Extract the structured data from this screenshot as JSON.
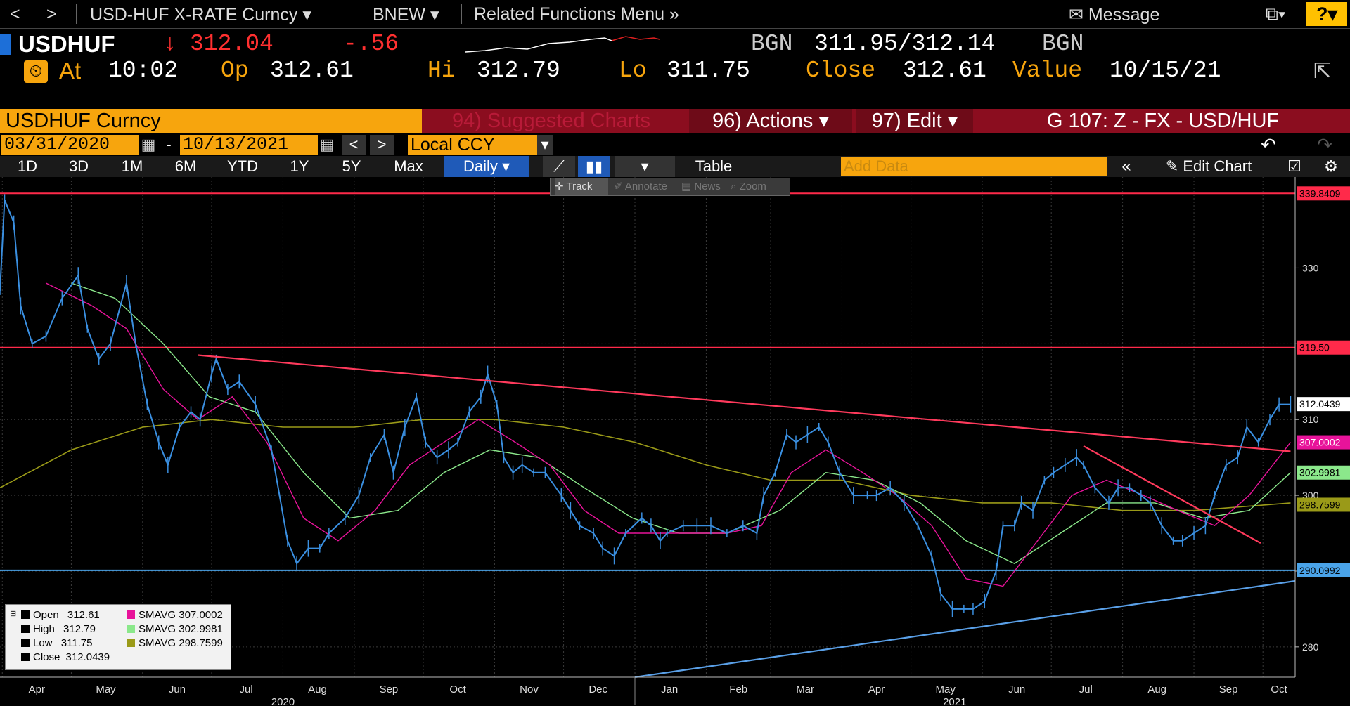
{
  "topbar": {
    "back": "<",
    "forward": ">",
    "security_menu": "USD-HUF X-RATE Curncy",
    "source_menu": "BNEW",
    "related_menu": "Related Functions Menu",
    "message": "Message",
    "help": "?"
  },
  "quote": {
    "ticker": "USDHUF",
    "last": "312.04",
    "change": "-.56",
    "bid_src": "BGN",
    "bid_ask": "311.95/312.14",
    "ask_src": "BGN",
    "at_label": "At",
    "at_time": "10:02",
    "op_label": "Op",
    "op": "312.61",
    "hi_label": "Hi",
    "hi": "312.79",
    "lo_label": "Lo",
    "lo": "311.75",
    "close_label": "Close",
    "close": "312.61",
    "value_label": "Value",
    "value_date": "10/15/21"
  },
  "toolbar": {
    "security": "USDHUF Curncy",
    "suggested": "94) Suggested Charts",
    "actions": "96) Actions",
    "edit": "97) Edit",
    "chart_id": "G 107: Z - FX - USD/HUF",
    "start_date": "03/31/2020",
    "end_date": "10/13/2021",
    "currency": "Local CCY",
    "ranges": [
      "1D",
      "3D",
      "1M",
      "6M",
      "YTD",
      "1Y",
      "5Y",
      "Max"
    ],
    "period": "Daily",
    "table": "Table",
    "add_data": "Add Data",
    "edit_chart": "Edit Chart",
    "tools": [
      "Track",
      "Annotate",
      "News",
      "Zoom"
    ]
  },
  "chart_data": {
    "type": "line",
    "ylim": [
      276,
      342
    ],
    "yticks": [
      280,
      290,
      300,
      310,
      320,
      330
    ],
    "ytick_labels": [
      "280",
      "290",
      "300",
      "310",
      "320",
      "330"
    ],
    "months": [
      "Apr",
      "May",
      "Jun",
      "Jul",
      "Aug",
      "Sep",
      "Oct",
      "Nov",
      "Dec",
      "Jan",
      "Feb",
      "Mar",
      "Apr",
      "May",
      "Jun",
      "Jul",
      "Aug",
      "Sep",
      "Oct"
    ],
    "years": [
      "2020",
      "2021"
    ],
    "close_series": [
      [
        "2020-03-31",
        327
      ],
      [
        "2020-04-02",
        339
      ],
      [
        "2020-04-06",
        336
      ],
      [
        "2020-04-09",
        325
      ],
      [
        "2020-04-14",
        320
      ],
      [
        "2020-04-20",
        321
      ],
      [
        "2020-04-27",
        326
      ],
      [
        "2020-05-04",
        329
      ],
      [
        "2020-05-08",
        322
      ],
      [
        "2020-05-13",
        318
      ],
      [
        "2020-05-18",
        320
      ],
      [
        "2020-05-25",
        328
      ],
      [
        "2020-05-29",
        320
      ],
      [
        "2020-06-03",
        312
      ],
      [
        "2020-06-08",
        307
      ],
      [
        "2020-06-12",
        304
      ],
      [
        "2020-06-17",
        309
      ],
      [
        "2020-06-22",
        311
      ],
      [
        "2020-06-26",
        310
      ],
      [
        "2020-07-01",
        316
      ],
      [
        "2020-07-03",
        318
      ],
      [
        "2020-07-08",
        314
      ],
      [
        "2020-07-13",
        315
      ],
      [
        "2020-07-20",
        312
      ],
      [
        "2020-07-27",
        306
      ],
      [
        "2020-08-03",
        294
      ],
      [
        "2020-08-07",
        291
      ],
      [
        "2020-08-12",
        293
      ],
      [
        "2020-08-17",
        293
      ],
      [
        "2020-08-21",
        295
      ],
      [
        "2020-08-28",
        297
      ],
      [
        "2020-09-03",
        300
      ],
      [
        "2020-09-08",
        305
      ],
      [
        "2020-09-14",
        308
      ],
      [
        "2020-09-18",
        303
      ],
      [
        "2020-09-23",
        309
      ],
      [
        "2020-09-28",
        313
      ],
      [
        "2020-10-02",
        307
      ],
      [
        "2020-10-07",
        305
      ],
      [
        "2020-10-12",
        306
      ],
      [
        "2020-10-16",
        307
      ],
      [
        "2020-10-21",
        311
      ],
      [
        "2020-10-26",
        313
      ],
      [
        "2020-10-29",
        316
      ],
      [
        "2020-11-02",
        312
      ],
      [
        "2020-11-05",
        305
      ],
      [
        "2020-11-09",
        303
      ],
      [
        "2020-11-13",
        304
      ],
      [
        "2020-11-18",
        303
      ],
      [
        "2020-11-23",
        303
      ],
      [
        "2020-11-30",
        300
      ],
      [
        "2020-12-04",
        298
      ],
      [
        "2020-12-08",
        296
      ],
      [
        "2020-12-14",
        295
      ],
      [
        "2020-12-18",
        293
      ],
      [
        "2020-12-23",
        292
      ],
      [
        "2020-12-28",
        295
      ],
      [
        "2021-01-04",
        297
      ],
      [
        "2021-01-08",
        296
      ],
      [
        "2021-01-12",
        294
      ],
      [
        "2021-01-15",
        295
      ],
      [
        "2021-01-22",
        296
      ],
      [
        "2021-01-28",
        296
      ],
      [
        "2021-02-03",
        296
      ],
      [
        "2021-02-10",
        295
      ],
      [
        "2021-02-17",
        296
      ],
      [
        "2021-02-23",
        295
      ],
      [
        "2021-02-26",
        300
      ],
      [
        "2021-03-03",
        303
      ],
      [
        "2021-03-08",
        308
      ],
      [
        "2021-03-12",
        307
      ],
      [
        "2021-03-17",
        308
      ],
      [
        "2021-03-22",
        309
      ],
      [
        "2021-03-26",
        307
      ],
      [
        "2021-03-31",
        303
      ],
      [
        "2021-04-06",
        300
      ],
      [
        "2021-04-12",
        300
      ],
      [
        "2021-04-16",
        300
      ],
      [
        "2021-04-22",
        301
      ],
      [
        "2021-04-28",
        299
      ],
      [
        "2021-05-04",
        296
      ],
      [
        "2021-05-10",
        292
      ],
      [
        "2021-05-14",
        287
      ],
      [
        "2021-05-19",
        285
      ],
      [
        "2021-05-24",
        285
      ],
      [
        "2021-05-28",
        285
      ],
      [
        "2021-06-02",
        286
      ],
      [
        "2021-06-07",
        290
      ],
      [
        "2021-06-10",
        296
      ],
      [
        "2021-06-15",
        296
      ],
      [
        "2021-06-18",
        299
      ],
      [
        "2021-06-23",
        298
      ],
      [
        "2021-06-28",
        302
      ],
      [
        "2021-07-02",
        303
      ],
      [
        "2021-07-07",
        304
      ],
      [
        "2021-07-12",
        305
      ],
      [
        "2021-07-15",
        304
      ],
      [
        "2021-07-20",
        301
      ],
      [
        "2021-07-26",
        299
      ],
      [
        "2021-07-30",
        301
      ],
      [
        "2021-08-04",
        301
      ],
      [
        "2021-08-09",
        300
      ],
      [
        "2021-08-13",
        299
      ],
      [
        "2021-08-18",
        296
      ],
      [
        "2021-08-23",
        294
      ],
      [
        "2021-08-27",
        294
      ],
      [
        "2021-09-01",
        295
      ],
      [
        "2021-09-06",
        296
      ],
      [
        "2021-09-10",
        300
      ],
      [
        "2021-09-15",
        304
      ],
      [
        "2021-09-20",
        305
      ],
      [
        "2021-09-24",
        309
      ],
      [
        "2021-09-29",
        307
      ],
      [
        "2021-10-04",
        310
      ],
      [
        "2021-10-08",
        312
      ],
      [
        "2021-10-13",
        312
      ]
    ],
    "sma_short": [
      [
        "2020-04-20",
        328
      ],
      [
        "2020-05-10",
        325
      ],
      [
        "2020-05-25",
        322
      ],
      [
        "2020-06-10",
        314
      ],
      [
        "2020-06-25",
        310
      ],
      [
        "2020-07-10",
        313
      ],
      [
        "2020-07-25",
        307
      ],
      [
        "2020-08-10",
        297
      ],
      [
        "2020-08-25",
        294
      ],
      [
        "2020-09-10",
        298
      ],
      [
        "2020-09-25",
        304
      ],
      [
        "2020-10-10",
        307
      ],
      [
        "2020-10-25",
        310
      ],
      [
        "2020-11-10",
        307
      ],
      [
        "2020-11-25",
        304
      ],
      [
        "2020-12-10",
        298
      ],
      [
        "2020-12-25",
        295
      ],
      [
        "2021-01-10",
        295
      ],
      [
        "2021-01-25",
        295
      ],
      [
        "2021-02-10",
        295
      ],
      [
        "2021-02-25",
        296
      ],
      [
        "2021-03-10",
        303
      ],
      [
        "2021-03-25",
        306
      ],
      [
        "2021-04-10",
        303
      ],
      [
        "2021-04-25",
        300
      ],
      [
        "2021-05-10",
        296
      ],
      [
        "2021-05-25",
        289
      ],
      [
        "2021-06-10",
        288
      ],
      [
        "2021-06-25",
        294
      ],
      [
        "2021-07-10",
        300
      ],
      [
        "2021-07-25",
        302
      ],
      [
        "2021-08-10",
        300
      ],
      [
        "2021-08-25",
        298
      ],
      [
        "2021-09-10",
        296
      ],
      [
        "2021-09-25",
        300
      ],
      [
        "2021-10-13",
        307
      ]
    ],
    "sma_mid": [
      [
        "2020-05-01",
        328
      ],
      [
        "2020-05-20",
        326
      ],
      [
        "2020-06-10",
        320
      ],
      [
        "2020-06-30",
        313
      ],
      [
        "2020-07-20",
        311
      ],
      [
        "2020-08-10",
        303
      ],
      [
        "2020-08-30",
        297
      ],
      [
        "2020-09-20",
        298
      ],
      [
        "2020-10-10",
        303
      ],
      [
        "2020-10-30",
        306
      ],
      [
        "2020-11-20",
        305
      ],
      [
        "2020-12-10",
        301
      ],
      [
        "2020-12-31",
        297
      ],
      [
        "2021-01-20",
        295
      ],
      [
        "2021-02-10",
        295
      ],
      [
        "2021-03-05",
        298
      ],
      [
        "2021-03-25",
        303
      ],
      [
        "2021-04-15",
        302
      ],
      [
        "2021-05-05",
        299
      ],
      [
        "2021-05-25",
        294
      ],
      [
        "2021-06-15",
        291
      ],
      [
        "2021-07-05",
        295
      ],
      [
        "2021-07-25",
        299
      ],
      [
        "2021-08-15",
        299
      ],
      [
        "2021-09-05",
        297
      ],
      [
        "2021-09-25",
        298
      ],
      [
        "2021-10-13",
        303
      ]
    ],
    "sma_long": [
      [
        "2020-03-31",
        301
      ],
      [
        "2020-05-01",
        306
      ],
      [
        "2020-06-01",
        309
      ],
      [
        "2020-07-01",
        310
      ],
      [
        "2020-08-01",
        309
      ],
      [
        "2020-09-01",
        309
      ],
      [
        "2020-10-01",
        310
      ],
      [
        "2020-11-01",
        310
      ],
      [
        "2020-12-01",
        309
      ],
      [
        "2021-01-01",
        307
      ],
      [
        "2021-02-01",
        304
      ],
      [
        "2021-03-01",
        302
      ],
      [
        "2021-04-01",
        302
      ],
      [
        "2021-05-01",
        300
      ],
      [
        "2021-06-01",
        299
      ],
      [
        "2021-07-01",
        299
      ],
      [
        "2021-08-01",
        298
      ],
      [
        "2021-09-01",
        298
      ],
      [
        "2021-10-13",
        299
      ]
    ],
    "trendlines": [
      {
        "color": "#ff3a5c",
        "from": [
          "2020-06-25",
          318.5
        ],
        "to": [
          "2021-10-13",
          305.8
        ]
      },
      {
        "color": "#ff3a5c",
        "from": [
          "2021-07-15",
          306.5
        ],
        "to": [
          "2021-09-30",
          293.7
        ]
      },
      {
        "color": "#5aa0e8",
        "from": [
          "2021-01-01",
          276
        ],
        "to": [
          "2021-10-15",
          288.7
        ]
      }
    ],
    "hlines": [
      {
        "value": 339.8409,
        "label": "339.8409",
        "color": "#ff2a4a"
      },
      {
        "value": 319.5,
        "label": "319.50",
        "color": "#ff2a4a"
      },
      {
        "value": 290.0992,
        "label": "290.0992",
        "color": "#4aa3e8"
      }
    ],
    "price_tags": [
      {
        "value": 312.0439,
        "label": "312.0439",
        "bg": "#ffffff",
        "fg": "#000000"
      },
      {
        "value": 307.0002,
        "label": "307.0002",
        "bg": "#e8139a",
        "fg": "#ffffff"
      },
      {
        "value": 302.9981,
        "label": "302.9981",
        "bg": "#8be88b",
        "fg": "#000000"
      },
      {
        "value": 298.7599,
        "label": "298.7599",
        "bg": "#9a9a18",
        "fg": "#000000"
      }
    ],
    "colors": {
      "price": "#3a8fe0",
      "sma_short": "#e8139a",
      "sma_mid": "#8be88b",
      "sma_long": "#9a9a18"
    },
    "legend": [
      {
        "name": "Open",
        "value": "312.61"
      },
      {
        "name": "High",
        "value": "312.79"
      },
      {
        "name": "Low",
        "value": "311.75"
      },
      {
        "name": "Close",
        "value": "312.0439"
      },
      {
        "name": "SMAVG",
        "value": "307.0002"
      },
      {
        "name": "SMAVG",
        "value": "302.9981"
      },
      {
        "name": "SMAVG",
        "value": "298.7599"
      }
    ]
  }
}
